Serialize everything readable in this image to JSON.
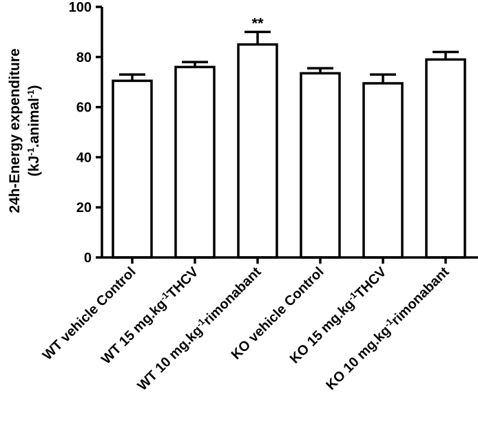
{
  "chart_data": {
    "type": "bar",
    "ylabel": {
      "line1": "24h-Energy expenditure",
      "line2_parts": [
        {
          "text": "(kJ",
          "sup": false
        },
        {
          "text": "-1",
          "sup": true
        },
        {
          "text": ".animal",
          "sup": false
        },
        {
          "text": "-1",
          "sup": true
        },
        {
          "text": ")",
          "sup": false
        }
      ]
    },
    "ylim": [
      0,
      100
    ],
    "yticks": [
      0,
      20,
      40,
      60,
      80,
      100
    ],
    "categories": [
      [
        {
          "text": "WT vehicle Control",
          "sup": false
        }
      ],
      [
        {
          "text": "WT 15 mg.kg",
          "sup": false
        },
        {
          "text": "-1",
          "sup": true
        },
        {
          "text": "THCV",
          "sup": false
        }
      ],
      [
        {
          "text": "WT 10 mg.kg",
          "sup": false
        },
        {
          "text": "-1",
          "sup": true
        },
        {
          "text": "rimonabant",
          "sup": false
        }
      ],
      [
        {
          "text": "KO vehicle Control",
          "sup": false
        }
      ],
      [
        {
          "text": "KO 15 mg.kg",
          "sup": false
        },
        {
          "text": "-1",
          "sup": true
        },
        {
          "text": "THCV",
          "sup": false
        }
      ],
      [
        {
          "text": "KO 10 mg.kg",
          "sup": false
        },
        {
          "text": "-1",
          "sup": true
        },
        {
          "text": "rimonabant",
          "sup": false
        }
      ]
    ],
    "values": [
      70.5,
      76.0,
      85.0,
      73.5,
      69.5,
      79.0
    ],
    "errors": [
      2.5,
      2.0,
      5.0,
      2.0,
      3.5,
      3.0
    ],
    "annotations": [
      "",
      "",
      "**",
      "",
      "",
      ""
    ],
    "grid": false,
    "legend": "none"
  }
}
